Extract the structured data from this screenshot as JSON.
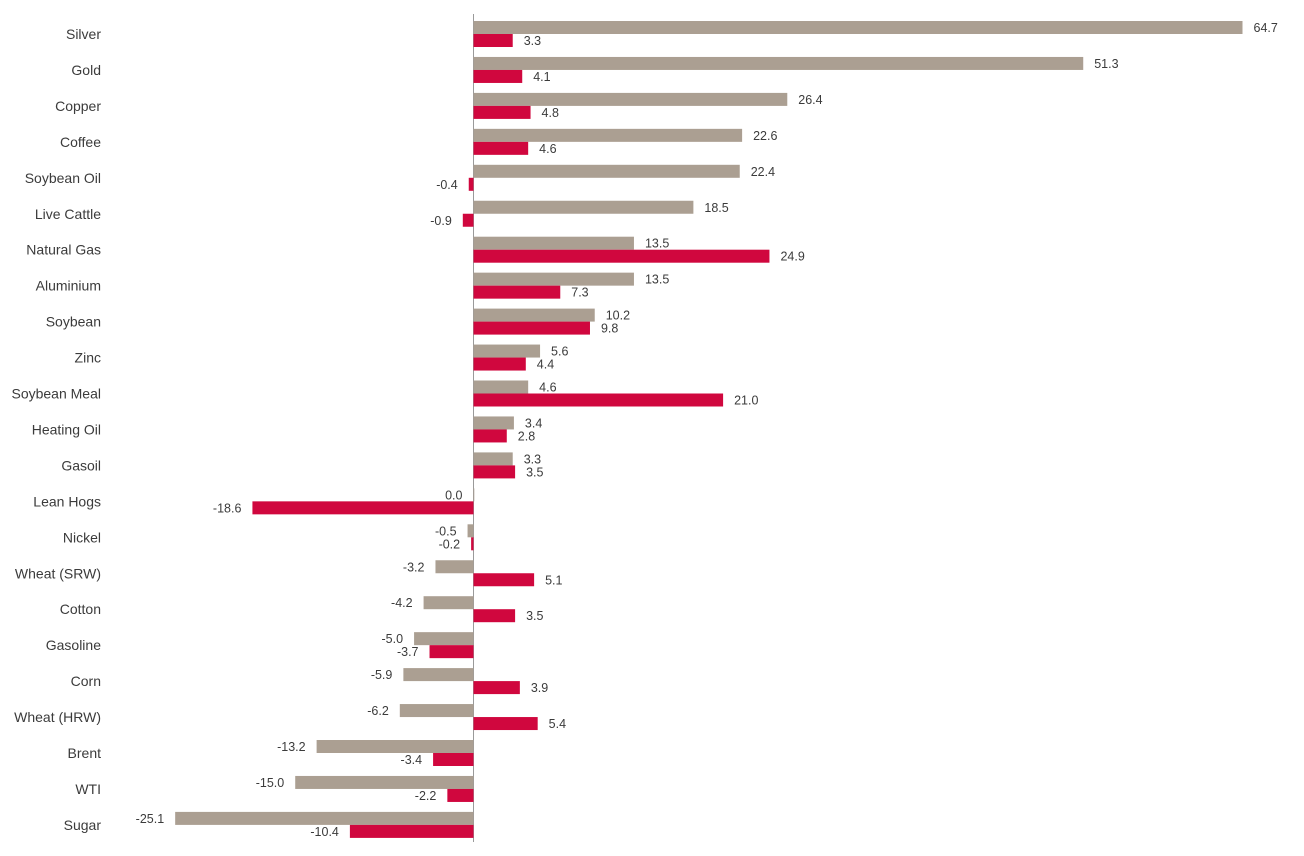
{
  "chart_data": {
    "type": "bar",
    "orientation": "horizontal",
    "grid": false,
    "legend": "none",
    "categories": [
      "Silver",
      "Gold",
      "Copper",
      "Coffee",
      "Soybean Oil",
      "Live Cattle",
      "Natural Gas",
      "Aluminium",
      "Soybean",
      "Zinc",
      "Soybean Meal",
      "Heating Oil",
      "Gasoil",
      "Lean Hogs",
      "Nickel",
      "Wheat (SRW)",
      "Cotton",
      "Gasoline",
      "Corn",
      "Wheat (HRW)",
      "Brent",
      "WTI",
      "Sugar"
    ],
    "series": [
      {
        "color": "#ab9f92",
        "values": [
          64.7,
          51.3,
          26.4,
          22.6,
          22.4,
          18.5,
          13.5,
          13.5,
          10.2,
          5.6,
          4.6,
          3.4,
          3.3,
          0.0,
          -0.5,
          -3.2,
          -4.2,
          -5.0,
          -5.9,
          -6.2,
          -13.2,
          -15.0,
          -25.1
        ],
        "labels": [
          "64.7",
          "51.3",
          "26.4",
          "22.6",
          "22.4",
          "18.5",
          "13.5",
          "13.5",
          "10.2",
          "5.6",
          "4.6",
          "3.4",
          "3.3",
          "0.0",
          "-0.5",
          "-3.2",
          "-4.2",
          "-5.0",
          "-5.9",
          "-6.2",
          "-13.2",
          "-15.0",
          "-25.1"
        ]
      },
      {
        "color": "#d0073e",
        "values": [
          3.3,
          4.1,
          4.8,
          4.6,
          -0.4,
          -0.9,
          24.9,
          7.3,
          9.8,
          4.4,
          21.0,
          2.8,
          3.5,
          -18.6,
          -0.2,
          5.1,
          3.5,
          -3.7,
          3.9,
          5.4,
          -3.4,
          -2.2,
          -10.4
        ],
        "labels": [
          "3.3",
          "4.1",
          "4.8",
          "4.6",
          "-0.4",
          "-0.9",
          "24.9",
          "7.3",
          "9.8",
          "4.4",
          "21.0",
          "2.8",
          "3.5",
          "-18.6",
          "-0.2",
          "5.1",
          "3.5",
          "-3.7",
          "3.9",
          "5.4",
          "-3.4",
          "-2.2",
          "-10.4"
        ]
      }
    ]
  }
}
